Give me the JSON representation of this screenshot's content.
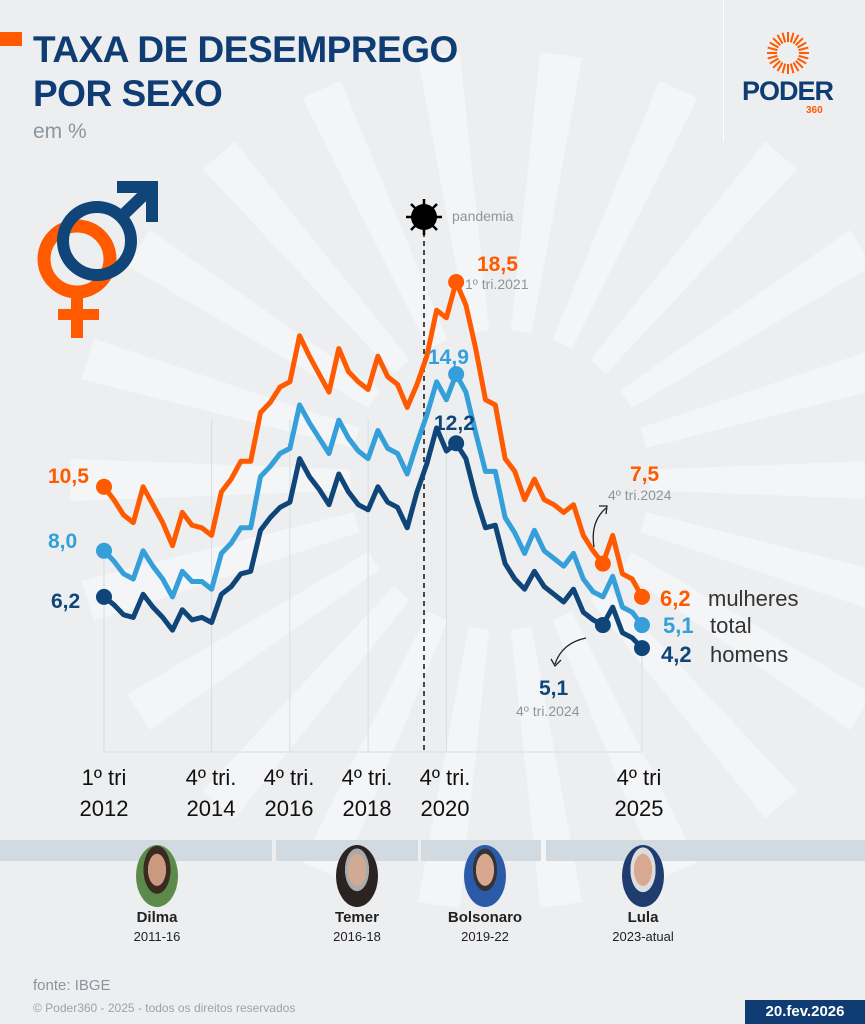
{
  "header": {
    "title_line1": "TAXA DE DESEMPREGO",
    "title_line2": "POR SEXO",
    "subtitle": "em %"
  },
  "logo": {
    "word": "PODER",
    "number": "360"
  },
  "colors": {
    "mulheres": "#ff5a00",
    "total": "#349fd9",
    "homens": "#0f4578",
    "title": "#0f3d73",
    "accent": "#ff5a00"
  },
  "icons": {
    "gender": "male-female-symbols-icon",
    "virus": "virus-icon"
  },
  "chart_data": {
    "type": "line",
    "title": "TAXA DE DESEMPREGO POR SEXO",
    "ylabel": "em %",
    "x_start": "1º tri 2012",
    "x_end": "4º tri 2025",
    "frequency": "quarterly",
    "x_tick_labels": [
      {
        "line1": "1º tri",
        "line2": "2012",
        "index": 0
      },
      {
        "line1": "4º tri.",
        "line2": "2014",
        "index": 11
      },
      {
        "line1": "4º tri.",
        "line2": "2016",
        "index": 19
      },
      {
        "line1": "4º tri.",
        "line2": "2018",
        "index": 27
      },
      {
        "line1": "4º tri.",
        "line2": "2020",
        "index": 35
      },
      {
        "line1": "4º tri",
        "line2": "2025",
        "index": 55
      }
    ],
    "ylim": [
      4,
      19
    ],
    "grid": "vertical at tick labels",
    "series": [
      {
        "name": "mulheres",
        "color": "#ff5a00",
        "values": [
          10.5,
          10.0,
          9.4,
          9.1,
          10.5,
          9.8,
          9.1,
          8.2,
          9.5,
          9.0,
          8.9,
          8.6,
          10.3,
          10.8,
          11.5,
          11.5,
          13.4,
          13.8,
          14.4,
          14.6,
          16.4,
          15.6,
          14.9,
          14.2,
          15.9,
          15.0,
          14.6,
          14.3,
          15.6,
          14.8,
          14.5,
          13.6,
          14.5,
          15.6,
          17.4,
          17.1,
          18.5,
          17.6,
          15.9,
          13.9,
          13.7,
          11.6,
          11.1,
          10.0,
          10.8,
          10.0,
          9.8,
          9.5,
          9.8,
          8.6,
          8.0,
          7.5,
          8.6,
          7.1,
          6.9,
          6.2
        ]
      },
      {
        "name": "total",
        "color": "#349fd9",
        "values": [
          8.0,
          7.6,
          7.1,
          6.9,
          8.0,
          7.4,
          6.9,
          6.2,
          7.2,
          6.8,
          6.8,
          6.5,
          7.9,
          8.3,
          8.9,
          8.9,
          10.9,
          11.3,
          11.8,
          12.0,
          13.7,
          13.0,
          12.4,
          11.8,
          13.1,
          12.4,
          11.9,
          11.6,
          12.7,
          12.0,
          11.8,
          11.0,
          12.2,
          13.3,
          14.6,
          13.9,
          14.9,
          14.2,
          12.6,
          11.1,
          11.1,
          9.3,
          8.7,
          7.9,
          8.8,
          8.0,
          7.7,
          7.4,
          7.9,
          6.9,
          6.4,
          6.2,
          7.0,
          5.8,
          5.6,
          5.1
        ]
      },
      {
        "name": "homens",
        "color": "#0f4578",
        "values": [
          6.2,
          5.9,
          5.5,
          5.4,
          6.3,
          5.8,
          5.4,
          4.9,
          5.7,
          5.3,
          5.4,
          5.2,
          6.3,
          6.6,
          7.1,
          7.2,
          8.8,
          9.3,
          9.7,
          9.9,
          11.6,
          10.9,
          10.4,
          9.8,
          11.0,
          10.3,
          9.8,
          9.6,
          10.5,
          9.9,
          9.7,
          8.9,
          10.3,
          11.4,
          12.8,
          11.9,
          12.2,
          11.6,
          10.1,
          8.9,
          9.0,
          7.5,
          6.9,
          6.5,
          7.2,
          6.6,
          6.3,
          6.0,
          6.5,
          5.6,
          5.3,
          5.1,
          5.8,
          4.8,
          4.6,
          4.2
        ]
      }
    ],
    "annotations": {
      "start_mulheres": "10,5",
      "start_total": "8,0",
      "start_homens": "6,2",
      "peak_mulheres": {
        "value": "18,5",
        "period": "1º tri.2021"
      },
      "peak_total": "14,9",
      "peak_homens": "12,2",
      "q4_2024_mulheres": {
        "value": "7,5",
        "period": "4º tri.2024"
      },
      "q4_2024_homens": {
        "value": "5,1",
        "period": "4º tri.2024"
      },
      "end_mulheres": "6,2",
      "end_total": "5,1",
      "end_homens": "4,2",
      "pandemia": "pandemia"
    },
    "legend": {
      "mulheres": "mulheres",
      "total": "total",
      "homens": "homens",
      "placement": "right, at line ends"
    }
  },
  "presidents": [
    {
      "name": "Dilma",
      "years": "2011-16"
    },
    {
      "name": "Temer",
      "years": "2016-18"
    },
    {
      "name": "Bolsonaro",
      "years": "2019-22"
    },
    {
      "name": "Lula",
      "years": "2023-atual"
    }
  ],
  "footer": {
    "source": "fonte: IBGE",
    "copyright": "© Poder360 - 2025 - todos os direitos reservados",
    "date": "20.fev.2026"
  }
}
